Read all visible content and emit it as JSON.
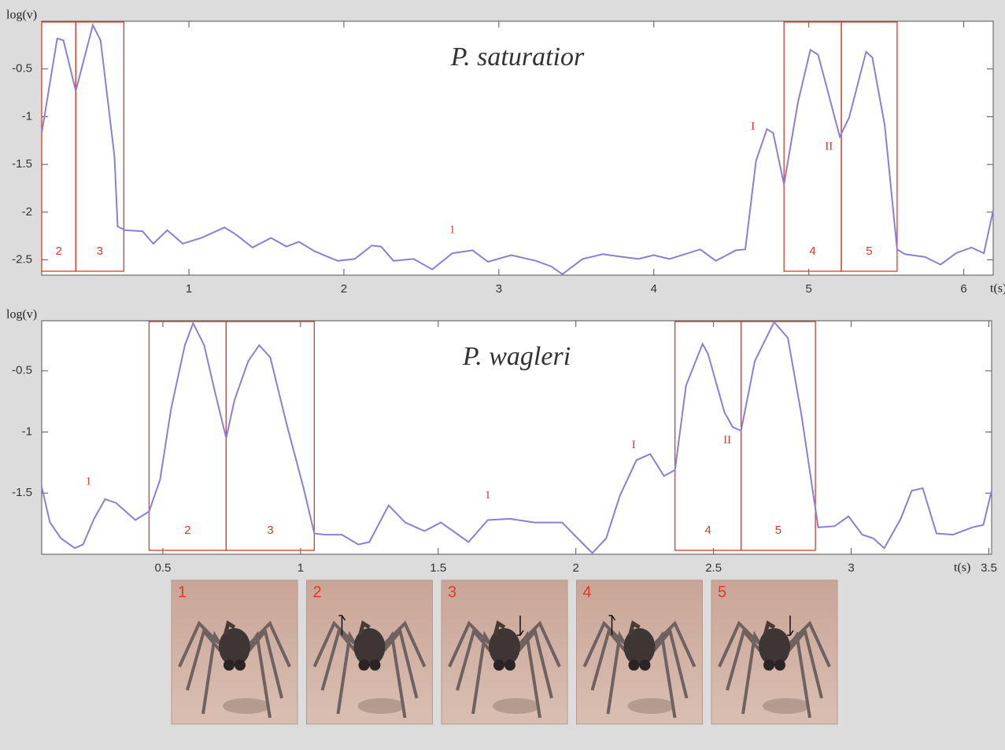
{
  "chart_data": [
    {
      "type": "line",
      "title": "P. saturatior",
      "x_label": "t(s)",
      "y_label": "log(v)",
      "xlim": [
        0.05,
        6.19
      ],
      "ylim": [
        -2.66,
        0
      ],
      "xticks": [
        1,
        2,
        3,
        4,
        5,
        6
      ],
      "yticks": [
        -0.5,
        -1,
        -1.5,
        -2,
        -2.5
      ],
      "x": [
        0.05,
        0.15,
        0.19,
        0.27,
        0.38,
        0.43,
        0.52,
        0.54,
        0.59,
        0.7,
        0.77,
        0.86,
        0.96,
        1.08,
        1.23,
        1.3,
        1.41,
        1.53,
        1.63,
        1.71,
        1.81,
        1.96,
        2.07,
        2.18,
        2.24,
        2.32,
        2.45,
        2.57,
        2.7,
        2.83,
        2.93,
        3.08,
        3.24,
        3.34,
        3.41,
        3.54,
        3.67,
        3.8,
        3.9,
        4.0,
        4.1,
        4.2,
        4.3,
        4.4,
        4.53,
        4.59,
        4.66,
        4.73,
        4.77,
        4.84,
        4.93,
        5.01,
        5.06,
        5.2,
        5.26,
        5.37,
        5.41,
        5.49,
        5.57,
        5.62,
        5.75,
        5.85,
        5.95,
        6.05,
        6.13,
        6.19
      ],
      "series": [
        {
          "color": "#8a7fd6",
          "values": [
            -1.17,
            -0.18,
            -0.2,
            -0.73,
            -0.04,
            -0.2,
            -1.42,
            -2.15,
            -2.19,
            -2.2,
            -2.33,
            -2.19,
            -2.33,
            -2.27,
            -2.16,
            -2.23,
            -2.37,
            -2.27,
            -2.36,
            -2.31,
            -2.41,
            -2.51,
            -2.49,
            -2.35,
            -2.36,
            -2.51,
            -2.49,
            -2.6,
            -2.43,
            -2.4,
            -2.52,
            -2.45,
            -2.51,
            -2.57,
            -2.65,
            -2.49,
            -2.44,
            -2.47,
            -2.49,
            -2.45,
            -2.49,
            -2.44,
            -2.39,
            -2.51,
            -2.4,
            -2.39,
            -1.46,
            -1.13,
            -1.17,
            -1.71,
            -0.85,
            -0.3,
            -0.35,
            -1.21,
            -1.01,
            -0.32,
            -0.38,
            -1.09,
            -2.39,
            -2.44,
            -2.47,
            -2.55,
            -2.43,
            -2.37,
            -2.43,
            -1.98
          ]
        }
      ],
      "phases": [
        {
          "label": "2",
          "start": 0.05,
          "end": 0.27
        },
        {
          "label": "3",
          "start": 0.27,
          "end": 0.58
        },
        {
          "label": "4",
          "start": 4.84,
          "end": 5.21
        },
        {
          "label": "5",
          "start": 5.21,
          "end": 5.57
        }
      ],
      "annotations": [
        {
          "text": "1",
          "x": 2.7,
          "y": -2.19
        },
        {
          "text": "I",
          "x": 4.64,
          "y": -1.11
        },
        {
          "text": "II",
          "x": 5.13,
          "y": -1.32
        }
      ]
    },
    {
      "type": "line",
      "title": "P. wagleri",
      "x_label": "t(s)",
      "y_label": "log(v)",
      "xlim": [
        0.06,
        3.51
      ],
      "ylim": [
        -2.0,
        -0.09
      ],
      "xticks": [
        0.5,
        1,
        1.5,
        2,
        2.5,
        3,
        3.5
      ],
      "yticks": [
        -0.5,
        -1,
        -1.5
      ],
      "x": [
        0.06,
        0.09,
        0.13,
        0.18,
        0.21,
        0.25,
        0.29,
        0.33,
        0.4,
        0.45,
        0.49,
        0.53,
        0.58,
        0.61,
        0.65,
        0.69,
        0.73,
        0.76,
        0.81,
        0.85,
        0.89,
        0.95,
        1.01,
        1.05,
        1.09,
        1.15,
        1.21,
        1.25,
        1.32,
        1.38,
        1.45,
        1.51,
        1.61,
        1.68,
        1.76,
        1.85,
        1.95,
        2.02,
        2.06,
        2.11,
        2.16,
        2.22,
        2.27,
        2.32,
        2.36,
        2.4,
        2.46,
        2.48,
        2.54,
        2.57,
        2.6,
        2.65,
        2.72,
        2.77,
        2.82,
        2.88,
        2.94,
        2.99,
        3.04,
        3.08,
        3.12,
        3.18,
        3.22,
        3.26,
        3.31,
        3.37,
        3.44,
        3.48,
        3.51
      ],
      "series": [
        {
          "color": "#8a7fd6",
          "values": [
            -1.45,
            -1.74,
            -1.87,
            -1.95,
            -1.92,
            -1.71,
            -1.55,
            -1.58,
            -1.72,
            -1.65,
            -1.39,
            -0.81,
            -0.29,
            -0.11,
            -0.29,
            -0.68,
            -1.05,
            -0.74,
            -0.42,
            -0.29,
            -0.39,
            -0.94,
            -1.45,
            -1.83,
            -1.84,
            -1.84,
            -1.92,
            -1.9,
            -1.6,
            -1.74,
            -1.81,
            -1.74,
            -1.9,
            -1.72,
            -1.71,
            -1.74,
            -1.74,
            -1.9,
            -1.99,
            -1.87,
            -1.52,
            -1.23,
            -1.18,
            -1.36,
            -1.31,
            -0.62,
            -0.28,
            -0.36,
            -0.84,
            -0.96,
            -0.99,
            -0.42,
            -0.1,
            -0.23,
            -0.87,
            -1.78,
            -1.77,
            -1.69,
            -1.84,
            -1.87,
            -1.95,
            -1.71,
            -1.48,
            -1.46,
            -1.83,
            -1.84,
            -1.78,
            -1.76,
            -1.48
          ]
        }
      ],
      "phases": [
        {
          "label": "2",
          "start": 0.45,
          "end": 0.73
        },
        {
          "label": "3",
          "start": 0.73,
          "end": 1.05
        },
        {
          "label": "4",
          "start": 2.36,
          "end": 2.6
        },
        {
          "label": "5",
          "start": 2.6,
          "end": 2.87
        }
      ],
      "annotations": [
        {
          "text": "1",
          "x": 0.23,
          "y": -1.41
        },
        {
          "text": "1",
          "x": 1.68,
          "y": -1.52
        },
        {
          "text": "I",
          "x": 2.21,
          "y": -1.11
        },
        {
          "text": "II",
          "x": 2.55,
          "y": -1.07
        }
      ]
    }
  ],
  "figure_panels": [
    "1",
    "2",
    "3",
    "4",
    "5"
  ]
}
